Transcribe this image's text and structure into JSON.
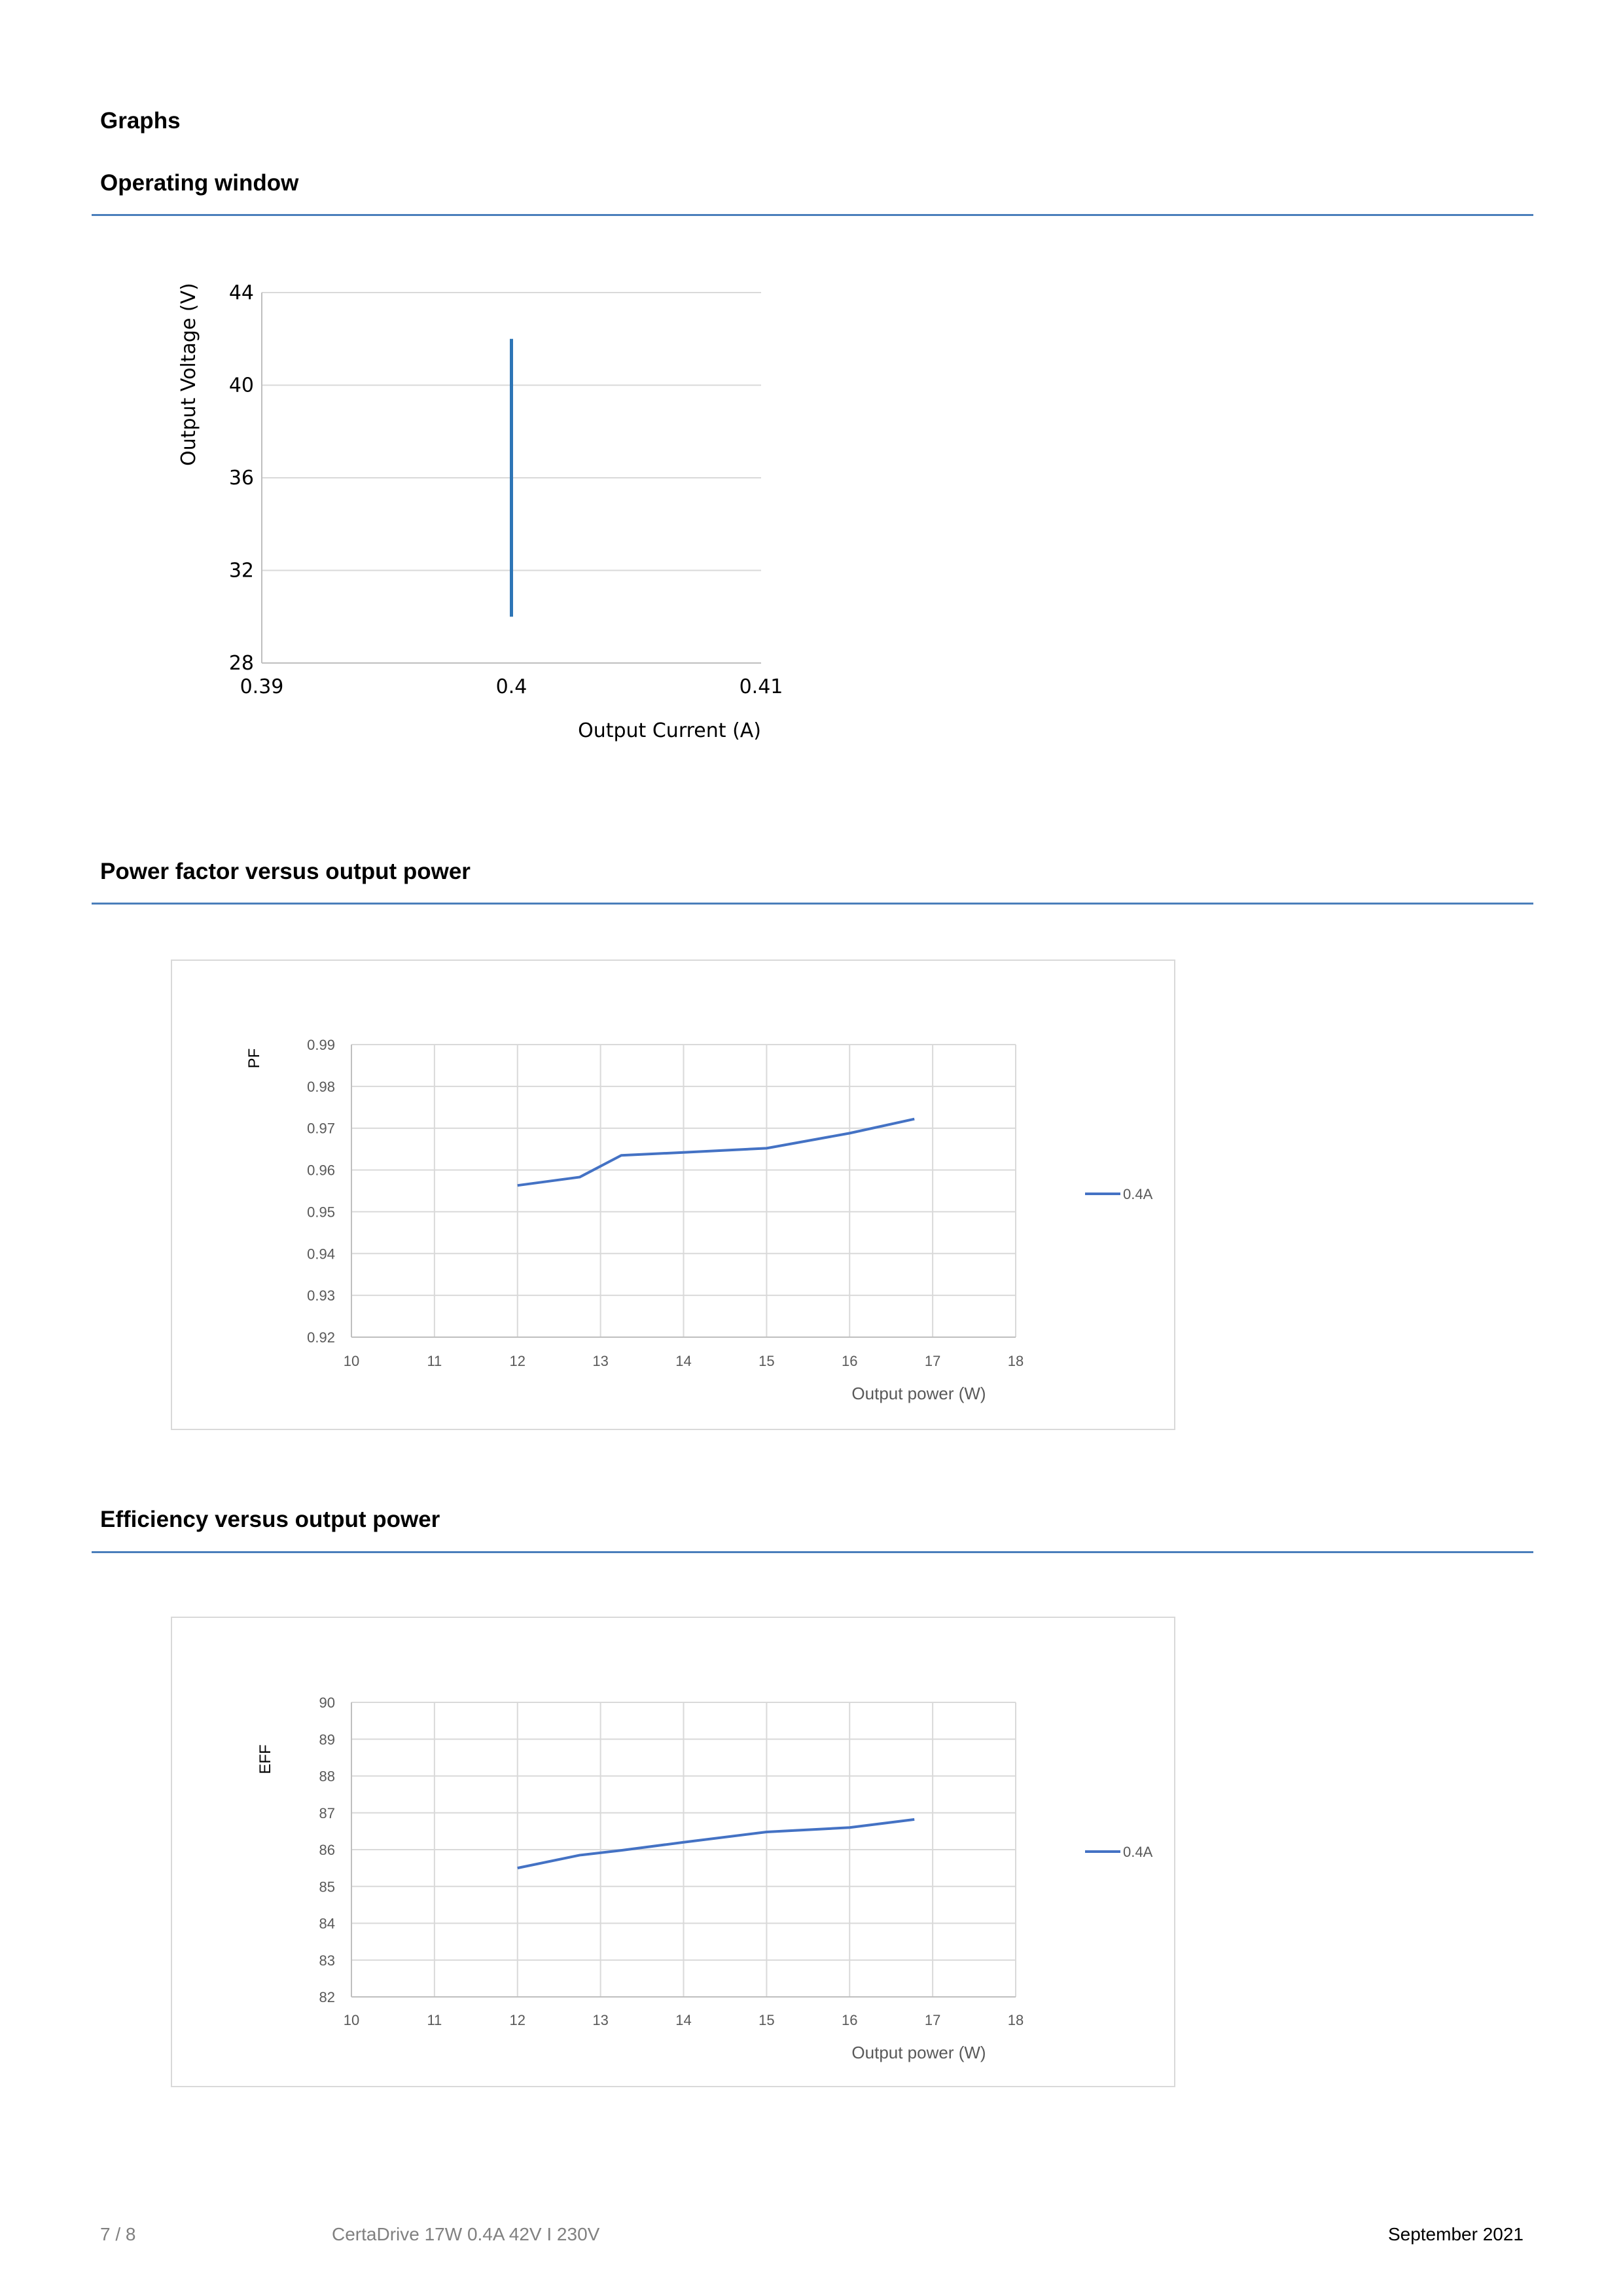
{
  "heading": "Graphs",
  "sections": [
    {
      "title": "Operating window"
    },
    {
      "title": "Power factor versus output power"
    },
    {
      "title": "Efficiency versus output power"
    }
  ],
  "chart_data": [
    {
      "type": "line",
      "xlabel": "Output Current (A)",
      "ylabel": "Output Voltage (V)",
      "xlim": [
        0.39,
        0.41
      ],
      "ylim": [
        28,
        44
      ],
      "xticks": [
        "0.39",
        "0.4",
        "0.41"
      ],
      "yticks": [
        "28",
        "32",
        "36",
        "40",
        "44"
      ],
      "grid": "horizontal",
      "color": "#2e75b6",
      "series": [
        {
          "x": [
            0.4,
            0.4
          ],
          "y": [
            30,
            42
          ]
        }
      ]
    },
    {
      "type": "line",
      "xlabel": "Output power (W)",
      "ylabel": "PF",
      "xlim": [
        10,
        18
      ],
      "ylim": [
        0.92,
        0.99
      ],
      "xticks": [
        "10",
        "11",
        "12",
        "13",
        "14",
        "15",
        "16",
        "17",
        "18"
      ],
      "yticks": [
        "0.92",
        "0.93",
        "0.94",
        "0.95",
        "0.96",
        "0.97",
        "0.98",
        "0.99"
      ],
      "grid": "both",
      "legend": "right",
      "color": "#4472c4",
      "series": [
        {
          "name": "0.4A",
          "x": [
            12.0,
            12.75,
            13.25,
            14.0,
            15.0,
            16.0,
            16.78
          ],
          "y": [
            0.9563,
            0.9583,
            0.9635,
            0.9642,
            0.9652,
            0.9688,
            0.9722
          ]
        }
      ]
    },
    {
      "type": "line",
      "xlabel": "Output power (W)",
      "ylabel": "EFF",
      "xlim": [
        10,
        18
      ],
      "ylim": [
        82,
        90
      ],
      "xticks": [
        "10",
        "11",
        "12",
        "13",
        "14",
        "15",
        "16",
        "17",
        "18"
      ],
      "yticks": [
        "82",
        "83",
        "84",
        "85",
        "86",
        "87",
        "88",
        "89",
        "90"
      ],
      "grid": "both",
      "legend": "right",
      "color": "#4472c4",
      "series": [
        {
          "name": "0.4A",
          "x": [
            12.0,
            12.75,
            13.25,
            14.0,
            15.0,
            16.0,
            16.78
          ],
          "y": [
            85.5,
            85.85,
            85.98,
            86.2,
            86.48,
            86.6,
            86.82
          ]
        }
      ]
    }
  ],
  "footer": {
    "page": "7 / 8",
    "product": "CertaDrive 17W 0.4A 42V I 230V",
    "date": "September 2021"
  }
}
